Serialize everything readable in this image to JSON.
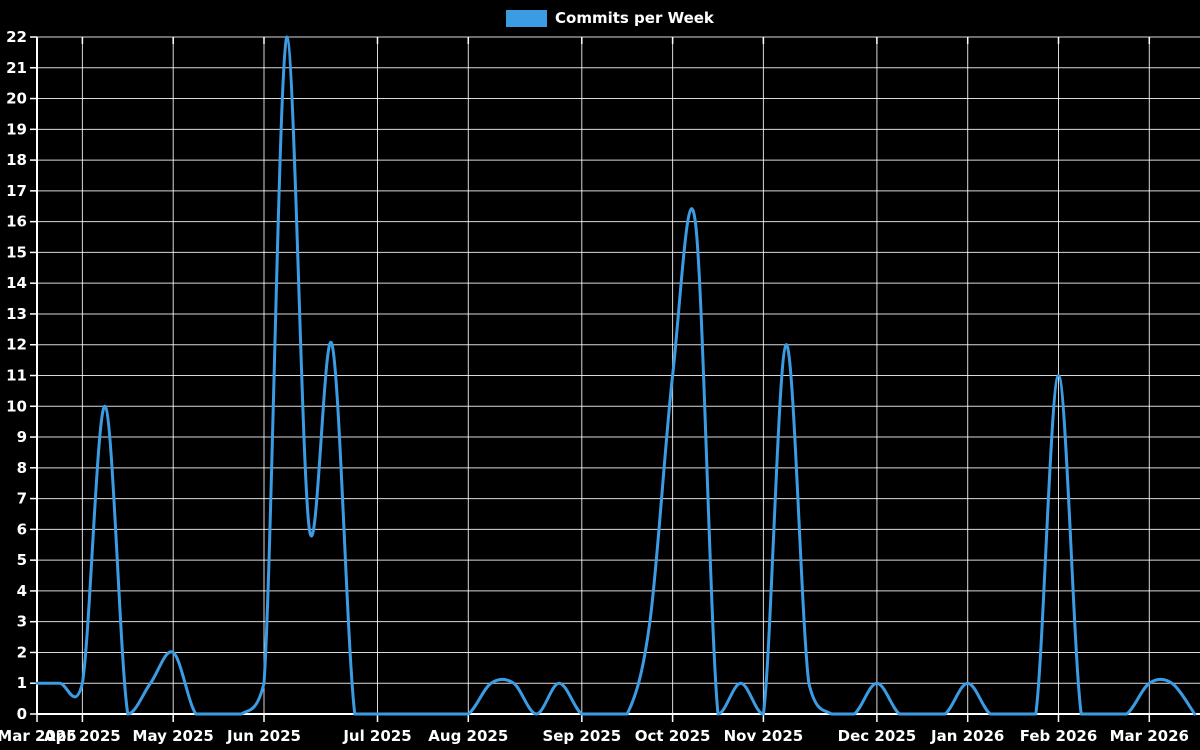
{
  "chart_data": {
    "type": "line",
    "title": "Commits per Week",
    "legend": {
      "label": "Commits per Week",
      "position": "top-center"
    },
    "background_color": "#000000",
    "grid_color": "#ffffff",
    "axis_color": "#ffffff",
    "text_color": "#ffffff",
    "line_color": "#3b9ce4",
    "smooth": true,
    "grid": true,
    "y_axis": {
      "min": 0,
      "max": 22,
      "step": 1
    },
    "x_ticks": [
      {
        "label": "Mar 2025",
        "week_index": 0
      },
      {
        "label": "Apr 2025",
        "week_index": 2
      },
      {
        "label": "May 2025",
        "week_index": 6
      },
      {
        "label": "Jun 2025",
        "week_index": 10
      },
      {
        "label": "Jul 2025",
        "week_index": 15
      },
      {
        "label": "Aug 2025",
        "week_index": 19
      },
      {
        "label": "Sep 2025",
        "week_index": 24
      },
      {
        "label": "Oct 2025",
        "week_index": 28
      },
      {
        "label": "Nov 2025",
        "week_index": 32
      },
      {
        "label": "Dec 2025",
        "week_index": 37
      },
      {
        "label": "Jan 2026",
        "week_index": 41
      },
      {
        "label": "Feb 2026",
        "week_index": 45
      },
      {
        "label": "Mar 2026",
        "week_index": 49
      }
    ],
    "series": [
      {
        "name": "Commits per Week",
        "week_start_dates": [
          "2025-03-23",
          "2025-03-30",
          "2025-04-06",
          "2025-04-13",
          "2025-04-20",
          "2025-04-27",
          "2025-05-04",
          "2025-05-11",
          "2025-05-18",
          "2025-05-25",
          "2025-06-01",
          "2025-06-08",
          "2025-06-15",
          "2025-06-22",
          "2025-06-29",
          "2025-07-06",
          "2025-07-13",
          "2025-07-20",
          "2025-07-27",
          "2025-08-03",
          "2025-08-10",
          "2025-08-17",
          "2025-08-24",
          "2025-08-31",
          "2025-09-07",
          "2025-09-14",
          "2025-09-21",
          "2025-09-28",
          "2025-10-05",
          "2025-10-12",
          "2025-10-19",
          "2025-10-26",
          "2025-11-02",
          "2025-11-09",
          "2025-11-16",
          "2025-11-23",
          "2025-11-30",
          "2025-12-07",
          "2025-12-14",
          "2025-12-21",
          "2025-12-28",
          "2026-01-04",
          "2026-01-11",
          "2026-01-18",
          "2026-01-25",
          "2026-02-01",
          "2026-02-08",
          "2026-02-15",
          "2026-02-22",
          "2026-03-01",
          "2026-03-08",
          "2026-03-15"
        ],
        "values": [
          1,
          1,
          1,
          10,
          0,
          1,
          2,
          0,
          0,
          0,
          1,
          22,
          6,
          12,
          0,
          0,
          0,
          0,
          0,
          0,
          1,
          1,
          0,
          1,
          0,
          0,
          0,
          3,
          11,
          16,
          0,
          1,
          0,
          12,
          1,
          0,
          0,
          1,
          0,
          0,
          0,
          1,
          0,
          0,
          0,
          11,
          0,
          0,
          0,
          1,
          1,
          0
        ]
      }
    ]
  }
}
